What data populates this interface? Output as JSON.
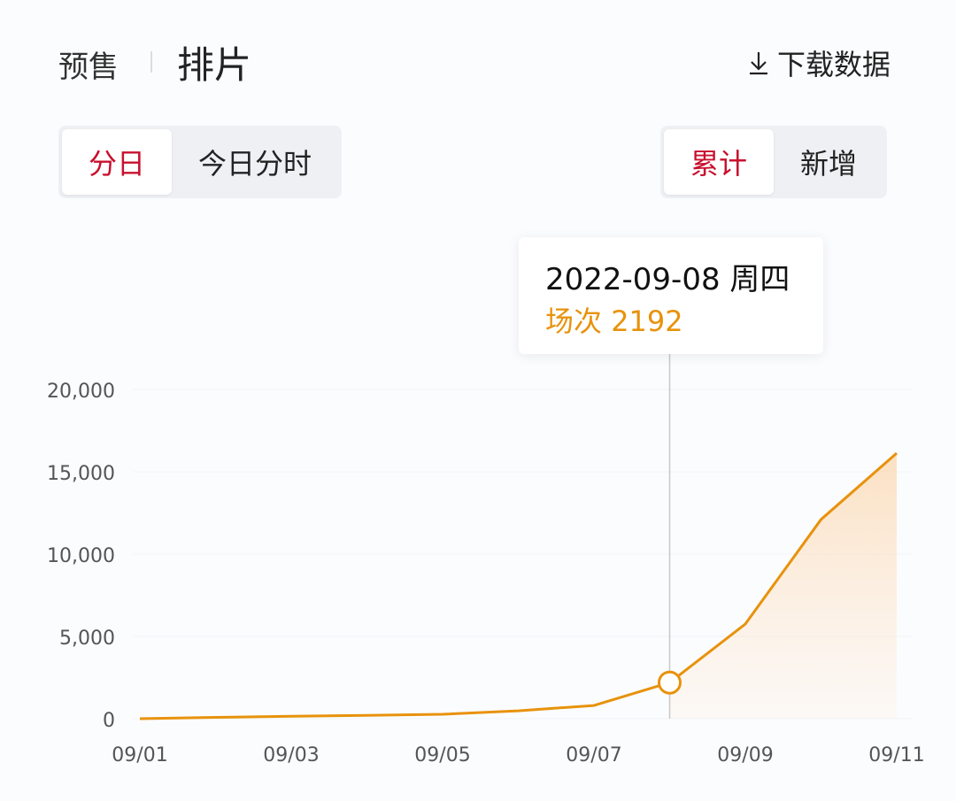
{
  "header": {
    "tab_presale": "预售",
    "tab_schedule": "排片",
    "download_label": "下载数据",
    "download_icon": "download-icon"
  },
  "left_toggle": {
    "options": [
      "分日",
      "今日分时"
    ],
    "selected": "分日"
  },
  "right_toggle": {
    "options": [
      "累计",
      "新增"
    ],
    "selected": "累计"
  },
  "tooltip": {
    "date": "2022-09-08 周四",
    "label": "场次",
    "value": "2192"
  },
  "colors": {
    "accent": "#c8102e",
    "line": "#e8920c"
  },
  "chart_data": {
    "type": "area",
    "x": [
      "09/01",
      "09/02",
      "09/03",
      "09/04",
      "09/05",
      "09/06",
      "09/07",
      "09/08",
      "09/09",
      "09/10",
      "09/11"
    ],
    "values": [
      0,
      80,
      150,
      200,
      270,
      480,
      800,
      2192,
      5750,
      12100,
      16130
    ],
    "x_tick_labels": [
      "09/01",
      "09/03",
      "09/05",
      "09/07",
      "09/09",
      "09/11"
    ],
    "y_tick_labels": [
      "0",
      "5,000",
      "10,000",
      "15,000",
      "20,000"
    ],
    "ylim": [
      0,
      20000
    ],
    "grid": true,
    "highlighted": "09/08"
  }
}
